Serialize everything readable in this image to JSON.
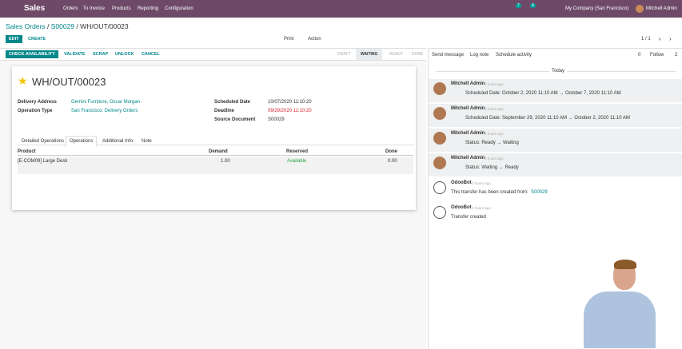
{
  "navbar": {
    "app": "Sales",
    "menu": [
      "Orders",
      "To Invoice",
      "Products",
      "Reporting",
      "Configuration"
    ],
    "badges": [
      "7",
      "4"
    ],
    "company": "My Company (San Francisco)",
    "user": "Mitchell Admin"
  },
  "breadcrumb": {
    "items": [
      "Sales Orders",
      "S00029",
      "WH/OUT/00023"
    ],
    "separator": "/"
  },
  "control": {
    "edit": "EDIT",
    "create": "CREATE",
    "print": "Print",
    "action": "Action",
    "pager": "1 / 1"
  },
  "actions": [
    "CHECK AVAILABILITY",
    "VALIDATE",
    "SCRAP",
    "UNLOCK",
    "CANCEL"
  ],
  "statusbar": {
    "states": [
      "DRAFT",
      "WAITING",
      "READY",
      "DONE"
    ],
    "active": "WAITING"
  },
  "form": {
    "title": "WH/OUT/00023",
    "left": [
      {
        "label": "Delivery Address",
        "value": "Gemini Furniture, Oscar Morgan"
      },
      {
        "label": "Operation Type",
        "value": "San Francisco: Delivery Orders"
      }
    ],
    "right": [
      {
        "label": "Scheduled Date",
        "value": "10/07/2020 11:10:20"
      },
      {
        "label": "Deadline",
        "value": "09/29/2020 11:10:20"
      },
      {
        "label": "Source Document",
        "value": "S00029"
      }
    ],
    "tabs": [
      "Detailed Operations",
      "Operations",
      "Additional Info",
      "Note"
    ],
    "active_tab": "Operations",
    "table": {
      "headers": [
        "Product",
        "Demand",
        "Reserved",
        "Done"
      ],
      "rows": [
        [
          "[E-COM09] Large Desk",
          "1.00",
          "Available",
          "0.00"
        ]
      ]
    }
  },
  "chatter": {
    "send": "Send message",
    "log": "Log note",
    "schedule": "Schedule activity",
    "attachments": "0",
    "follow": "Follow",
    "followers": "2",
    "day": "Today",
    "messages": [
      {
        "author": "Mitchell Admin",
        "time": "3 hours ago",
        "body": "Scheduled Date: October 2, 2020 11:10 AM → October 7, 2020 11:10 AM"
      },
      {
        "author": "Mitchell Admin",
        "time": "3 hours ago",
        "body": "Scheduled Date: September 29, 2020 11:10 AM → October 2, 2020 11:10 AM"
      },
      {
        "author": "Mitchell Admin",
        "time": "3 hours ago",
        "body": "Status: Ready → Waiting"
      },
      {
        "author": "Mitchell Admin",
        "time": "3 hours ago",
        "body": "Status: Waiting → Ready"
      },
      {
        "author": "OdooBot",
        "time": "3 hours ago",
        "body": "This transfer has been created from:",
        "link": "S00029"
      },
      {
        "author": "OdooBot",
        "time": "3 hours ago",
        "body": "Transfer created"
      }
    ]
  }
}
